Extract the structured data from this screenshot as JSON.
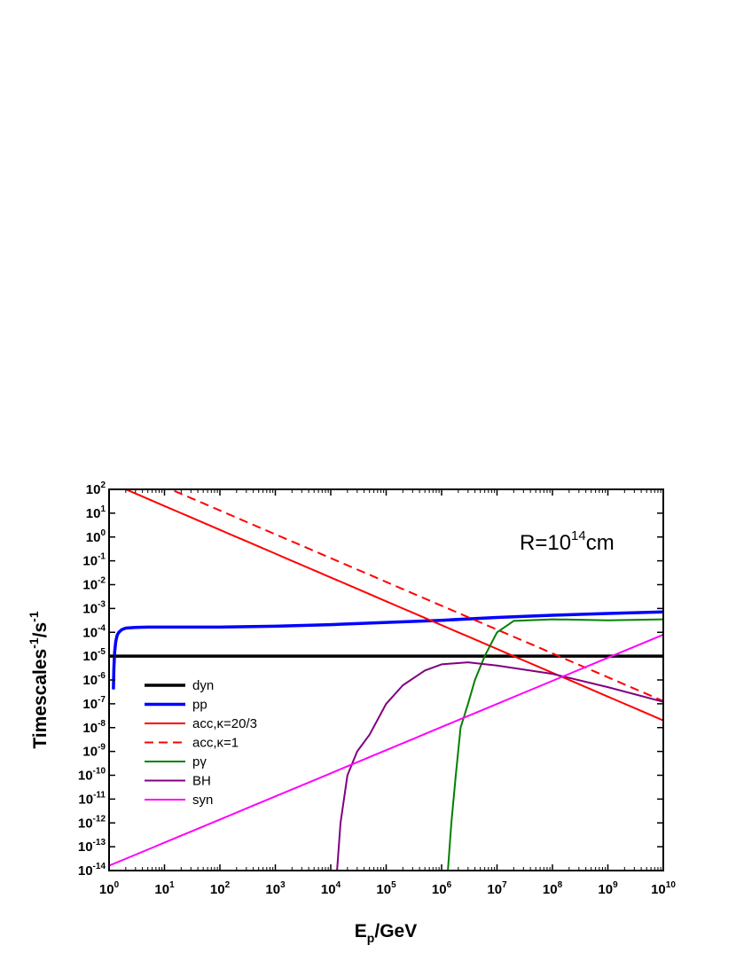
{
  "chart_data": {
    "type": "line",
    "xlabel": {
      "main": "E",
      "sub": "p",
      "rest": "/GeV"
    },
    "ylabel": {
      "main": "Timescales",
      "sup1": "-1",
      "mid": "/s",
      "sup2": "-1"
    },
    "x_scale": "log",
    "y_scale": "log",
    "xlim": [
      1,
      10000000000
    ],
    "ylim": [
      1e-14,
      100
    ],
    "x_ticks": [
      {
        "base": "10",
        "exp": "0"
      },
      {
        "base": "10",
        "exp": "1"
      },
      {
        "base": "10",
        "exp": "2"
      },
      {
        "base": "10",
        "exp": "3"
      },
      {
        "base": "10",
        "exp": "4"
      },
      {
        "base": "10",
        "exp": "5"
      },
      {
        "base": "10",
        "exp": "6"
      },
      {
        "base": "10",
        "exp": "7"
      },
      {
        "base": "10",
        "exp": "8"
      },
      {
        "base": "10",
        "exp": "9"
      },
      {
        "base": "10",
        "exp": "10"
      }
    ],
    "y_ticks": [
      {
        "base": "10",
        "exp": "2"
      },
      {
        "base": "10",
        "exp": "1"
      },
      {
        "base": "10",
        "exp": "0"
      },
      {
        "base": "10",
        "exp": "-1"
      },
      {
        "base": "10",
        "exp": "-2"
      },
      {
        "base": "10",
        "exp": "-3"
      },
      {
        "base": "10",
        "exp": "-4"
      },
      {
        "base": "10",
        "exp": "-5"
      },
      {
        "base": "10",
        "exp": "-6"
      },
      {
        "base": "10",
        "exp": "-7"
      },
      {
        "base": "10",
        "exp": "-8"
      },
      {
        "base": "10",
        "exp": "-9"
      },
      {
        "base": "10",
        "exp": "-10"
      },
      {
        "base": "10",
        "exp": "-11"
      },
      {
        "base": "10",
        "exp": "-12"
      },
      {
        "base": "10",
        "exp": "-13"
      },
      {
        "base": "10",
        "exp": "-14"
      }
    ],
    "annotation": {
      "pre": "R=10",
      "sup": "14",
      "post": "cm"
    },
    "legend_position": "bottom-left",
    "series": [
      {
        "name": "dyn",
        "color": "#000000",
        "dash": "solid",
        "weight": "thick",
        "x": [
          1,
          10000000000
        ],
        "y": [
          1e-05,
          1e-05
        ]
      },
      {
        "name": "pp",
        "color": "#0000ff",
        "dash": "solid",
        "weight": "thick",
        "x": [
          1.2,
          1.22,
          1.26,
          1.32,
          1.4,
          1.5,
          1.7,
          2,
          3,
          5,
          10,
          100,
          1000,
          10000,
          100000,
          1000000,
          10000000,
          100000000,
          1000000000,
          10000000000
        ],
        "y": [
          4e-07,
          3e-06,
          1.5e-05,
          4e-05,
          7.5e-05,
          0.0001,
          0.00013,
          0.00015,
          0.00016,
          0.000165,
          0.000165,
          0.000165,
          0.00018,
          0.00021,
          0.00026,
          0.00032,
          0.00042,
          0.00052,
          0.00062,
          0.00072
        ]
      },
      {
        "name": "acc,κ=20/3",
        "color": "#ff0000",
        "dash": "solid",
        "weight": "normal",
        "x": [
          1,
          10000000000
        ],
        "y": [
          200,
          2e-08
        ]
      },
      {
        "name": "acc,κ=1",
        "color": "#ff0000",
        "dash": "dashed",
        "weight": "normal",
        "x": [
          1,
          10000000000
        ],
        "y": [
          1300,
          1.3e-07
        ]
      },
      {
        "name": "pγ",
        "color": "#008000",
        "dash": "solid",
        "weight": "normal",
        "x": [
          1300000,
          1500000,
          1800000,
          2200000,
          3000000,
          4000000,
          6000000,
          10000000,
          20000000,
          100000000,
          1000000000,
          10000000000
        ],
        "y": [
          1e-14,
          1e-12,
          1e-10,
          1e-08,
          1e-07,
          1e-06,
          1e-05,
          0.0001,
          0.0003,
          0.00035,
          0.00032,
          0.00035
        ]
      },
      {
        "name": "BH",
        "color": "#800080",
        "dash": "solid",
        "weight": "normal",
        "x": [
          13000,
          15000,
          20000,
          30000,
          50000,
          100000,
          200000,
          500000,
          1000000,
          3000000,
          10000000,
          100000000,
          1000000000,
          10000000000
        ],
        "y": [
          1e-14,
          1e-12,
          1e-10,
          1e-09,
          5e-09,
          1e-07,
          6e-07,
          2.5e-06,
          4.5e-06,
          5.5e-06,
          4e-06,
          1.8e-06,
          5e-07,
          1.2e-07
        ]
      },
      {
        "name": "syn",
        "color": "#ff00ff",
        "dash": "solid",
        "weight": "normal",
        "x": [
          1,
          10000000000
        ],
        "y": [
          1.6e-14,
          8e-05
        ]
      }
    ]
  }
}
